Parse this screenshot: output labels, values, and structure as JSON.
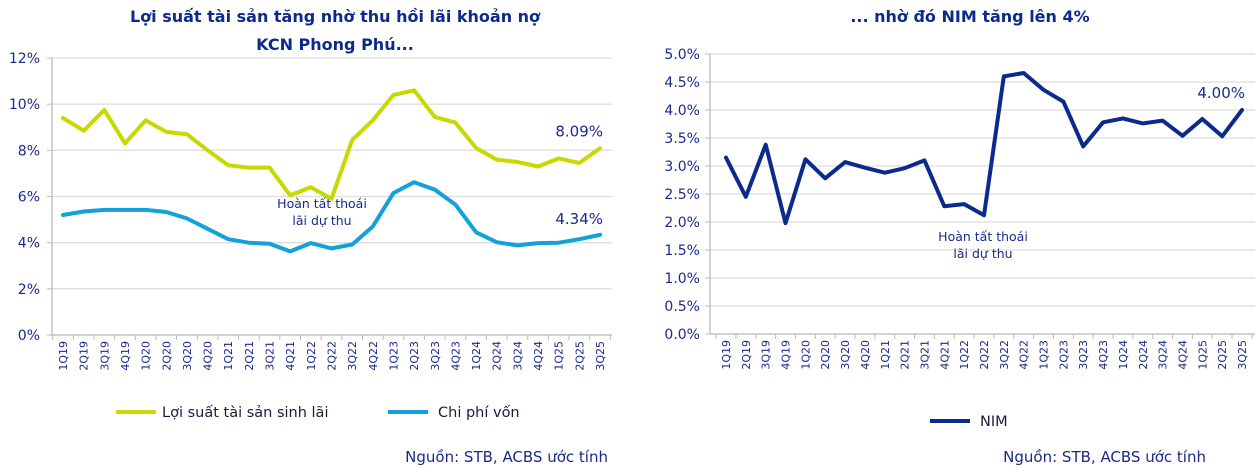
{
  "chart_data": [
    {
      "type": "line",
      "title": "Lợi suất tài sản tăng nhờ thu hồi lãi khoản nợ KCN Phong Phú...",
      "title_lines": [
        "Lợi suất tài sản tăng nhờ thu hồi lãi khoản nợ",
        "KCN Phong Phú..."
      ],
      "categories": [
        "1Q19",
        "2Q19",
        "3Q19",
        "4Q19",
        "1Q20",
        "2Q20",
        "3Q20",
        "4Q20",
        "1Q21",
        "2Q21",
        "3Q21",
        "4Q21",
        "1Q22",
        "2Q22",
        "3Q22",
        "4Q22",
        "1Q23",
        "2Q23",
        "3Q23",
        "4Q23",
        "1Q24",
        "2Q24",
        "3Q24",
        "4Q24",
        "1Q25",
        "2Q25",
        "3Q25"
      ],
      "ylim": [
        0,
        12
      ],
      "yticks": [
        "0%",
        "2%",
        "4%",
        "6%",
        "8%",
        "10%",
        "12%"
      ],
      "grid": true,
      "legend_position": "bottom",
      "series": [
        {
          "name": "Lợi suất tài sản sinh lãi",
          "color": "#c8d900",
          "values": [
            9.4,
            8.85,
            9.75,
            8.3,
            9.3,
            8.8,
            8.7,
            8.0,
            7.35,
            7.25,
            7.25,
            6.05,
            6.4,
            5.9,
            8.45,
            9.3,
            10.4,
            10.6,
            9.45,
            9.2,
            8.1,
            7.6,
            7.5,
            7.3,
            7.65,
            7.45,
            8.09
          ],
          "end_label": "8.09%"
        },
        {
          "name": "Chi phí vốn",
          "color": "#14a0d8",
          "values": [
            5.2,
            5.35,
            5.42,
            5.42,
            5.42,
            5.33,
            5.05,
            4.6,
            4.15,
            4.0,
            3.95,
            3.62,
            3.98,
            3.75,
            3.92,
            4.7,
            6.15,
            6.62,
            6.3,
            5.65,
            4.45,
            4.02,
            3.88,
            3.98,
            4.0,
            4.15,
            4.34
          ],
          "end_label": "4.34%"
        }
      ],
      "annotation": [
        "Hoàn tất thoái",
        "lãi dự thu"
      ],
      "source": "Nguồn: STB, ACBS ước tính"
    },
    {
      "type": "line",
      "title": "... nhờ đó NIM tăng lên 4%",
      "categories": [
        "1Q19",
        "2Q19",
        "3Q19",
        "4Q19",
        "1Q20",
        "2Q20",
        "3Q20",
        "4Q20",
        "1Q21",
        "2Q21",
        "3Q21",
        "4Q21",
        "1Q22",
        "2Q22",
        "3Q22",
        "4Q22",
        "1Q23",
        "2Q23",
        "3Q23",
        "4Q23",
        "1Q24",
        "2Q24",
        "3Q24",
        "4Q24",
        "1Q25",
        "2Q25",
        "3Q25"
      ],
      "ylim": [
        0,
        5
      ],
      "yticks": [
        "0.0%",
        "0.5%",
        "1.0%",
        "1.5%",
        "2.0%",
        "2.5%",
        "3.0%",
        "3.5%",
        "4.0%",
        "4.5%",
        "5.0%"
      ],
      "grid": true,
      "legend_position": "bottom",
      "series": [
        {
          "name": "NIM",
          "color": "#0c2a8c",
          "values": [
            3.15,
            2.45,
            3.38,
            1.98,
            3.12,
            2.78,
            3.07,
            2.97,
            2.88,
            2.96,
            3.1,
            2.28,
            2.32,
            2.12,
            4.6,
            4.66,
            4.36,
            4.15,
            3.35,
            3.78,
            3.85,
            3.76,
            3.81,
            3.54,
            3.84,
            3.53,
            4.0
          ],
          "end_label": "4.00%"
        }
      ],
      "annotation": [
        "Hoàn tất thoái",
        "lãi dự thu"
      ],
      "source": "Nguồn: STB, ACBS ước tính"
    }
  ]
}
